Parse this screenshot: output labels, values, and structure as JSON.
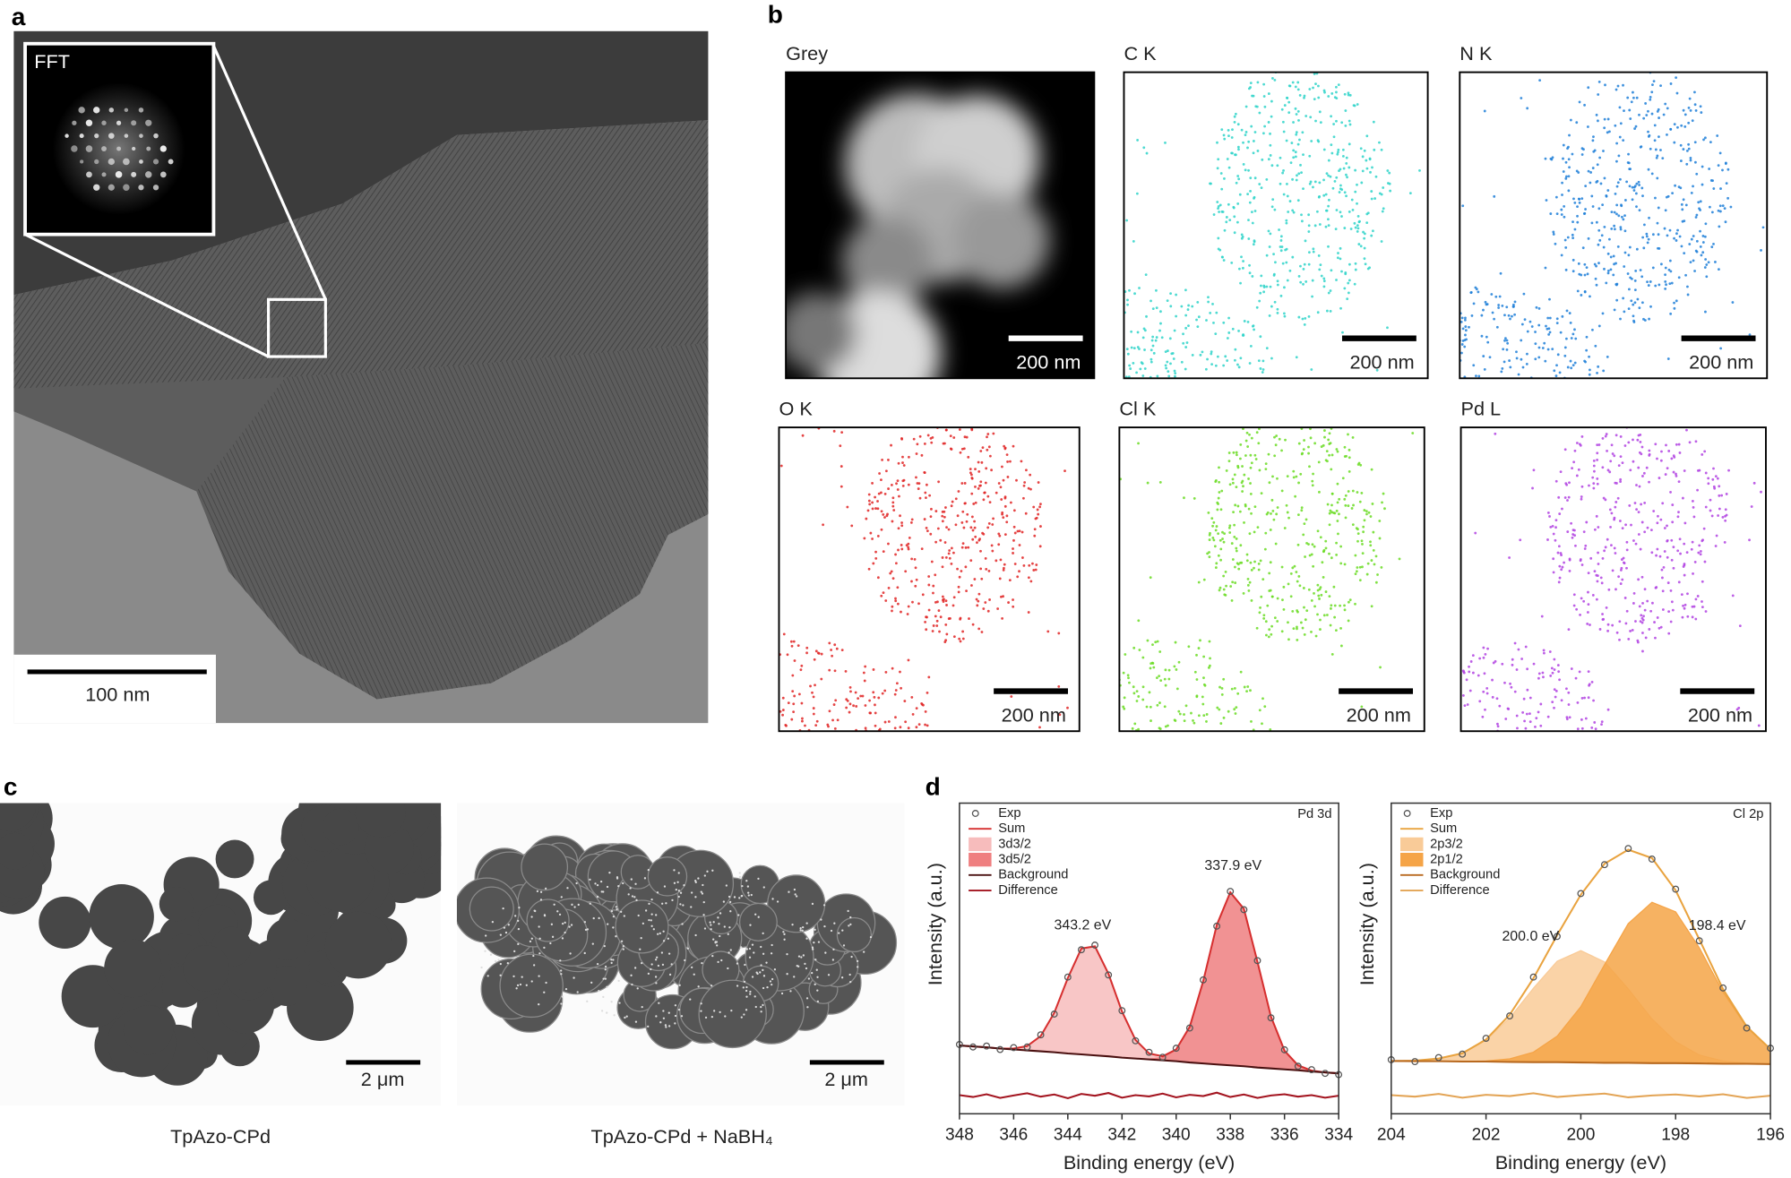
{
  "panels": {
    "a": {
      "label": "a",
      "inset_label": "FFT",
      "scale_bar": "100 nm"
    },
    "b": {
      "label": "b",
      "maps": [
        {
          "title": "Grey",
          "scale_bar": "200 nm"
        },
        {
          "title": "C K",
          "scale_bar": "200 nm",
          "color": "#2fd3c9"
        },
        {
          "title": "N K",
          "scale_bar": "200 nm",
          "color": "#1f7fd8"
        },
        {
          "title": "O K",
          "scale_bar": "200 nm",
          "color": "#e02424"
        },
        {
          "title": "Cl K",
          "scale_bar": "200 nm",
          "color": "#6bdc24"
        },
        {
          "title": "Pd L",
          "scale_bar": "200 nm",
          "color": "#b243e2"
        }
      ]
    },
    "c": {
      "label": "c",
      "images": [
        {
          "caption": "TpAzo-CPd",
          "scale_bar": "2 μm"
        },
        {
          "caption": "TpAzo-CPd + NaBH₄",
          "scale_bar": "2 μm"
        }
      ]
    },
    "d": {
      "label": "d"
    }
  },
  "chart_data": [
    {
      "type": "line",
      "title": "Pd 3d",
      "xlabel": "Binding energy (eV)",
      "ylabel": "Intensity (a.u.)",
      "x": [
        348,
        347.5,
        347,
        346.5,
        346,
        345.5,
        345,
        344.5,
        344,
        343.5,
        343,
        342.5,
        342,
        341.5,
        341,
        340.5,
        340,
        339.5,
        339,
        338.5,
        338,
        337.5,
        337,
        336.5,
        336,
        335.5,
        335,
        334.5,
        334
      ],
      "xlim": [
        348,
        334
      ],
      "xticks": [
        348,
        346,
        344,
        342,
        340,
        338,
        336,
        334
      ],
      "ylim": [
        0,
        100
      ],
      "area_base": "Background",
      "series": [
        {
          "name": "Exp",
          "mark": "circle",
          "color": "#555555",
          "values": [
            22.3,
            21.5,
            21.8,
            20.7,
            21.3,
            21.5,
            25.4,
            32.1,
            44.0,
            52.8,
            54.3,
            44.7,
            33.2,
            23.5,
            19.8,
            18.2,
            21.1,
            27.6,
            43.1,
            60.4,
            71.6,
            65.7,
            49.3,
            30.9,
            20.6,
            15.3,
            14.2,
            13.0,
            12.6
          ]
        },
        {
          "name": "Sum",
          "mark": "line",
          "color": "#d62f2f",
          "values": [
            22.0,
            21.7,
            21.4,
            21.0,
            21.0,
            21.8,
            25.0,
            32.5,
            43.7,
            53.2,
            53.9,
            45.1,
            32.9,
            23.8,
            19.4,
            18.5,
            20.7,
            28.0,
            42.7,
            60.8,
            71.3,
            66.0,
            48.9,
            31.3,
            20.3,
            15.6,
            13.9,
            13.3,
            13.0
          ]
        },
        {
          "name": "3d3/2",
          "mark": "area",
          "color": "#f7bcbc",
          "values": [
            0,
            0,
            0,
            0,
            0.3,
            1.4,
            4.9,
            12.7,
            24.3,
            34.1,
            35.1,
            26.6,
            14.8,
            6.0,
            1.8,
            0.4,
            0.1,
            0,
            0,
            0,
            0,
            0,
            0,
            0,
            0,
            0,
            0,
            0,
            0
          ]
        },
        {
          "name": "3d5/2",
          "mark": "area",
          "color": "#ef7f80",
          "values": [
            0,
            0,
            0,
            0,
            0,
            0,
            0,
            0,
            0,
            0,
            0,
            0,
            0,
            0,
            0.1,
            0.9,
            3.7,
            11.5,
            26.5,
            44.9,
            55.7,
            50.7,
            34.0,
            16.7,
            6.0,
            1.6,
            0.3,
            0,
            0
          ]
        },
        {
          "name": "Background",
          "mark": "line",
          "color": "#4a1010",
          "values": [
            22.0,
            21.7,
            21.4,
            21.0,
            20.7,
            20.4,
            20.1,
            19.8,
            19.4,
            19.1,
            18.8,
            18.5,
            18.1,
            17.8,
            17.5,
            17.2,
            16.9,
            16.5,
            16.2,
            15.9,
            15.6,
            15.3,
            14.9,
            14.6,
            14.3,
            14.0,
            13.6,
            13.3,
            13.0
          ]
        },
        {
          "name": "Difference",
          "mark": "line",
          "color": "#a3141f",
          "values": [
            6.0,
            5.4,
            6.3,
            5.1,
            5.9,
            6.6,
            5.5,
            6.2,
            5.0,
            6.4,
            5.8,
            6.7,
            5.2,
            6.0,
            5.6,
            6.5,
            5.3,
            6.1,
            5.7,
            6.8,
            5.4,
            6.2,
            5.1,
            5.9,
            6.3,
            5.5,
            6.0,
            5.2,
            5.8
          ]
        }
      ],
      "annotations": [
        {
          "text": "343.2 eV",
          "x": 343.2
        },
        {
          "text": "337.9 eV",
          "x": 337.9
        }
      ]
    },
    {
      "type": "line",
      "title": "Cl 2p",
      "xlabel": "Binding energy (eV)",
      "ylabel": "Intensity (a.u.)",
      "x": [
        204,
        203.5,
        203,
        202.5,
        202,
        201.5,
        201,
        200.5,
        200,
        199.5,
        199,
        198.5,
        198,
        197.5,
        197,
        196.5,
        196
      ],
      "xlim": [
        204,
        196
      ],
      "xticks": [
        204,
        202,
        200,
        198,
        196
      ],
      "ylim": [
        0,
        100
      ],
      "area_base": "Background",
      "series": [
        {
          "name": "Exp",
          "mark": "circle",
          "color": "#555555",
          "values": [
            17.4,
            16.8,
            18.1,
            19.2,
            24.3,
            31.5,
            44.0,
            57.1,
            70.9,
            80.2,
            85.4,
            82.0,
            72.3,
            55.7,
            40.5,
            27.6,
            21.1
          ]
        },
        {
          "name": "Sum",
          "mark": "line",
          "color": "#e9a33f",
          "values": [
            17.0,
            17.1,
            17.8,
            19.5,
            23.9,
            31.9,
            43.6,
            57.5,
            70.5,
            80.5,
            85.0,
            82.3,
            71.9,
            56.1,
            40.1,
            28.0,
            20.8
          ]
        },
        {
          "name": "2p3/2",
          "mark": "area",
          "color": "#f9cb98",
          "values": [
            0.0,
            0.2,
            0.9,
            2.7,
            6.9,
            14.2,
            23.8,
            32.5,
            36.0,
            32.5,
            23.8,
            14.2,
            6.9,
            2.7,
            0.9,
            0.2,
            0.0
          ]
        },
        {
          "name": "2p1/2",
          "mark": "area",
          "color": "#f5a447",
          "values": [
            0,
            0,
            0,
            0,
            0.2,
            1.0,
            3.2,
            8.4,
            18.0,
            31.6,
            44.8,
            51.8,
            48.7,
            37.2,
            23.1,
            11.7,
            4.8
          ]
        },
        {
          "name": "Background",
          "mark": "line",
          "color": "#b8691f",
          "values": [
            17.0,
            16.9,
            16.9,
            16.8,
            16.8,
            16.7,
            16.6,
            16.6,
            16.5,
            16.4,
            16.4,
            16.3,
            16.3,
            16.2,
            16.1,
            16.1,
            16.0
          ]
        },
        {
          "name": "Difference",
          "mark": "line",
          "color": "#e3a455",
          "values": [
            6.0,
            5.5,
            6.4,
            5.2,
            6.1,
            5.7,
            6.6,
            5.4,
            6.0,
            6.5,
            5.3,
            5.9,
            6.2,
            5.6,
            6.3,
            5.1,
            5.8
          ]
        }
      ],
      "annotations": [
        {
          "text": "200.0 eV",
          "x": 200.0
        },
        {
          "text": "198.4 eV",
          "x": 198.4
        }
      ]
    }
  ]
}
